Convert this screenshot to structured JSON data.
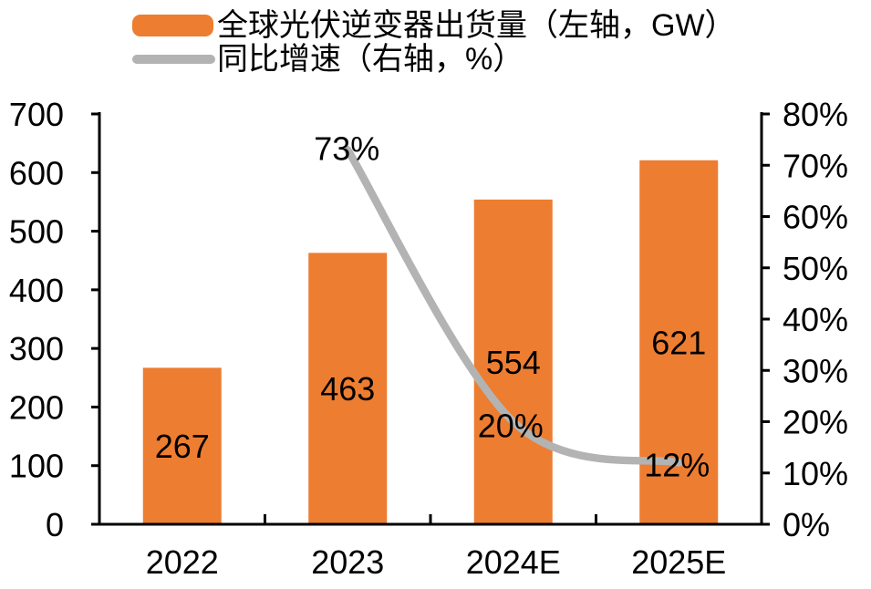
{
  "chart_data": {
    "type": "bar",
    "subtype": "bar-line-combo",
    "title": "",
    "categories": [
      "2022",
      "2023",
      "2024E",
      "2025E"
    ],
    "series": [
      {
        "name": "全球光伏逆变器出货量（左轴，GW）",
        "type": "bar",
        "axis": "left",
        "color": "#ED7D31",
        "values": [
          267,
          463,
          554,
          621
        ],
        "data_labels": [
          "267",
          "463",
          "554",
          "621"
        ]
      },
      {
        "name": "同比增速（右轴，%）",
        "type": "line",
        "axis": "right",
        "color": "#B3B3B3",
        "values": [
          null,
          73,
          20,
          12
        ],
        "data_labels": [
          null,
          "73%",
          "20%",
          "12%"
        ]
      }
    ],
    "left_axis": {
      "min": 0,
      "max": 700,
      "step": 100,
      "tick_labels": [
        "0",
        "100",
        "200",
        "300",
        "400",
        "500",
        "600",
        "700"
      ]
    },
    "right_axis": {
      "min": 0,
      "max": 80,
      "step": 10,
      "tick_labels": [
        "0%",
        "10%",
        "20%",
        "30%",
        "40%",
        "50%",
        "60%",
        "70%",
        "80%"
      ]
    },
    "grid": false,
    "legend_position": "top-left",
    "background_color": "#FFFFFF",
    "axis_color": "#000000",
    "text_color": "#000000"
  }
}
